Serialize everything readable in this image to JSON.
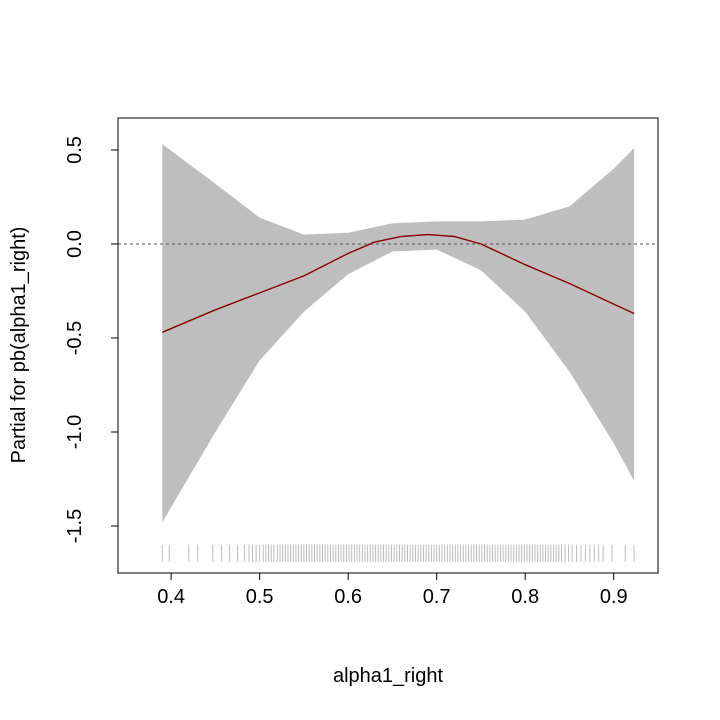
{
  "chart_data": {
    "type": "line",
    "title": "",
    "xlabel": "alpha1_right",
    "ylabel": "Partial for pb(alpha1_right)",
    "xlim": [
      0.34,
      0.95
    ],
    "ylim": [
      -1.75,
      0.67
    ],
    "xticks": [
      0.4,
      0.5,
      0.6,
      0.7,
      0.8,
      0.9
    ],
    "xtick_labels": [
      "0.4",
      "0.5",
      "0.6",
      "0.7",
      "0.8",
      "0.9"
    ],
    "yticks": [
      0.5,
      0.0,
      -0.5,
      -1.0,
      -1.5
    ],
    "ytick_labels": [
      "0.5",
      "0.0",
      "-0.5",
      "-1.0",
      "-1.5"
    ],
    "reference_line": {
      "y": 0.0,
      "style": "dashed",
      "color": "#555555"
    },
    "series": [
      {
        "kind": "line",
        "color": "#8b0000",
        "x": [
          0.39,
          0.45,
          0.5,
          0.55,
          0.6,
          0.63,
          0.66,
          0.69,
          0.72,
          0.75,
          0.8,
          0.85,
          0.9,
          0.923
        ],
        "y": [
          -0.47,
          -0.35,
          -0.26,
          -0.17,
          -0.05,
          0.01,
          0.04,
          0.05,
          0.04,
          0.0,
          -0.11,
          -0.21,
          -0.32,
          -0.37
        ]
      },
      {
        "kind": "band",
        "color": "#bebebe",
        "x": [
          0.39,
          0.45,
          0.5,
          0.55,
          0.6,
          0.65,
          0.7,
          0.75,
          0.8,
          0.85,
          0.9,
          0.923
        ],
        "upper": [
          0.53,
          0.32,
          0.14,
          0.05,
          0.06,
          0.11,
          0.12,
          0.12,
          0.13,
          0.2,
          0.4,
          0.51
        ],
        "lower": [
          -1.48,
          -1.0,
          -0.62,
          -0.36,
          -0.16,
          -0.04,
          -0.03,
          -0.14,
          -0.36,
          -0.68,
          -1.06,
          -1.26
        ]
      }
    ],
    "rug": {
      "color": "#bbbbbb",
      "y_from": -1.6,
      "y_to": -1.69,
      "x": [
        0.39,
        0.398,
        0.42,
        0.43,
        0.447,
        0.457,
        0.466,
        0.475,
        0.483,
        0.488,
        0.492,
        0.496,
        0.5,
        0.504,
        0.507,
        0.51,
        0.513,
        0.516,
        0.52,
        0.523,
        0.526,
        0.529,
        0.532,
        0.535,
        0.538,
        0.541,
        0.544,
        0.547,
        0.55,
        0.553,
        0.556,
        0.559,
        0.562,
        0.565,
        0.568,
        0.571,
        0.574,
        0.577,
        0.58,
        0.583,
        0.586,
        0.589,
        0.592,
        0.595,
        0.598,
        0.601,
        0.604,
        0.607,
        0.61,
        0.613,
        0.616,
        0.619,
        0.622,
        0.625,
        0.628,
        0.631,
        0.634,
        0.637,
        0.64,
        0.643,
        0.646,
        0.649,
        0.652,
        0.655,
        0.658,
        0.661,
        0.664,
        0.667,
        0.67,
        0.673,
        0.676,
        0.679,
        0.682,
        0.685,
        0.688,
        0.691,
        0.694,
        0.697,
        0.7,
        0.703,
        0.706,
        0.709,
        0.712,
        0.715,
        0.718,
        0.721,
        0.724,
        0.727,
        0.73,
        0.733,
        0.736,
        0.739,
        0.742,
        0.745,
        0.748,
        0.751,
        0.754,
        0.757,
        0.76,
        0.763,
        0.766,
        0.769,
        0.772,
        0.775,
        0.778,
        0.781,
        0.784,
        0.787,
        0.79,
        0.793,
        0.796,
        0.799,
        0.802,
        0.805,
        0.808,
        0.811,
        0.814,
        0.817,
        0.82,
        0.823,
        0.826,
        0.829,
        0.832,
        0.835,
        0.838,
        0.841,
        0.845,
        0.849,
        0.853,
        0.858,
        0.863,
        0.868,
        0.873,
        0.878,
        0.883,
        0.888,
        0.898,
        0.913,
        0.923
      ]
    }
  }
}
